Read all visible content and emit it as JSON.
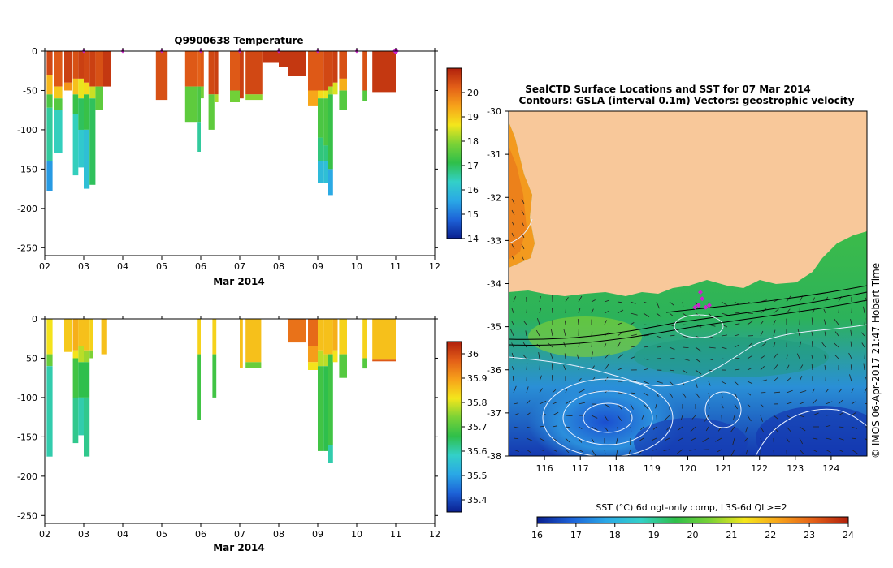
{
  "chart_data": [
    {
      "type": "heatmap",
      "id": "temperature-section",
      "title": "Q9900638  Temperature",
      "xlabel": "Mar 2014",
      "ylabel": "",
      "xlim": [
        2,
        12
      ],
      "ylim": [
        -260,
        0
      ],
      "xticks": [
        "02",
        "03",
        "04",
        "05",
        "06",
        "07",
        "08",
        "09",
        "10",
        "11",
        "12"
      ],
      "yticks": [
        0,
        -50,
        -100,
        -150,
        -200,
        -250
      ],
      "colorbar": {
        "min": 14,
        "max": 21,
        "ticks": [
          14,
          15,
          16,
          17,
          18,
          19,
          20
        ],
        "colors": [
          "#0a1f8f",
          "#1d62d8",
          "#2aa8e6",
          "#33d0c8",
          "#2fbf4a",
          "#7ad236",
          "#f4e61c",
          "#f7a21a",
          "#e35f18",
          "#b0200c"
        ]
      },
      "surface_markers": [
        3.0,
        4.0,
        5.0,
        6.0,
        7.0,
        8.0,
        9.0,
        10.0,
        11.0
      ],
      "profiles": [
        {
          "x": 2.05,
          "w": 0.15,
          "segments": [
            [
              0,
              -30,
              20.5
            ],
            [
              -30,
              -55,
              19.2
            ],
            [
              -55,
              -72,
              17.4
            ],
            [
              -72,
              -140,
              16.6
            ],
            [
              -140,
              -178,
              15.4
            ]
          ]
        },
        {
          "x": 2.25,
          "w": 0.2,
          "segments": [
            [
              0,
              -45,
              20.3
            ],
            [
              -45,
              -60,
              19.0
            ],
            [
              -60,
              -75,
              17.5
            ],
            [
              -75,
              -130,
              16.4
            ]
          ]
        },
        {
          "x": 2.5,
          "w": 0.2,
          "segments": [
            [
              0,
              -40,
              20.6
            ],
            [
              -40,
              -50,
              19.6
            ]
          ]
        },
        {
          "x": 2.72,
          "w": 0.14,
          "segments": [
            [
              0,
              -35,
              20.4
            ],
            [
              -35,
              -55,
              19.1
            ],
            [
              -55,
              -80,
              17.2
            ],
            [
              -80,
              -158,
              16.4
            ]
          ]
        },
        {
          "x": 2.86,
          "w": 0.14,
          "segments": [
            [
              0,
              -35,
              20.6
            ],
            [
              -35,
              -60,
              18.6
            ],
            [
              -60,
              -100,
              17.0
            ],
            [
              -100,
              -148,
              16.2
            ]
          ]
        },
        {
          "x": 3.0,
          "w": 0.15,
          "segments": [
            [
              0,
              -40,
              20.5
            ],
            [
              -40,
              -55,
              18.8
            ],
            [
              -55,
              -100,
              17.2
            ],
            [
              -100,
              -175,
              16.0
            ]
          ]
        },
        {
          "x": 3.15,
          "w": 0.15,
          "segments": [
            [
              0,
              -45,
              20.6
            ],
            [
              -45,
              -60,
              18.4
            ],
            [
              -60,
              -170,
              17.0
            ]
          ]
        },
        {
          "x": 3.3,
          "w": 0.2,
          "segments": [
            [
              0,
              -45,
              20.4
            ],
            [
              -45,
              -75,
              17.6
            ]
          ]
        },
        {
          "x": 3.5,
          "w": 0.2,
          "segments": [
            [
              0,
              -45,
              20.7
            ]
          ]
        },
        {
          "x": 4.85,
          "w": 0.3,
          "segments": [
            [
              0,
              -62,
              20.4
            ]
          ]
        },
        {
          "x": 5.6,
          "w": 0.32,
          "segments": [
            [
              0,
              -45,
              20.3
            ],
            [
              -45,
              -90,
              17.6
            ]
          ]
        },
        {
          "x": 5.92,
          "w": 0.08,
          "segments": [
            [
              0,
              -45,
              20.2
            ],
            [
              -45,
              -90,
              17.4
            ],
            [
              -90,
              -128,
              16.6
            ]
          ]
        },
        {
          "x": 6.0,
          "w": 0.08,
          "segments": [
            [
              0,
              -45,
              20.3
            ],
            [
              -45,
              -60,
              17.8
            ]
          ]
        },
        {
          "x": 6.2,
          "w": 0.15,
          "segments": [
            [
              0,
              -55,
              20.5
            ],
            [
              -55,
              -100,
              17.6
            ]
          ]
        },
        {
          "x": 6.35,
          "w": 0.1,
          "segments": [
            [
              0,
              -55,
              20.6
            ],
            [
              -55,
              -65,
              18.2
            ]
          ]
        },
        {
          "x": 6.75,
          "w": 0.25,
          "segments": [
            [
              0,
              -50,
              20.3
            ],
            [
              -50,
              -65,
              17.8
            ]
          ]
        },
        {
          "x": 7.0,
          "w": 0.1,
          "segments": [
            [
              0,
              -60,
              20.6
            ]
          ]
        },
        {
          "x": 7.15,
          "w": 0.45,
          "segments": [
            [
              0,
              -55,
              20.5
            ],
            [
              -55,
              -62,
              18.0
            ]
          ]
        },
        {
          "x": 7.6,
          "w": 0.4,
          "segments": [
            [
              0,
              -15,
              20.7
            ]
          ]
        },
        {
          "x": 8.0,
          "w": 0.25,
          "segments": [
            [
              0,
              -20,
              20.7
            ]
          ]
        },
        {
          "x": 8.25,
          "w": 0.45,
          "segments": [
            [
              0,
              -32,
              20.7
            ]
          ]
        },
        {
          "x": 8.75,
          "w": 0.25,
          "segments": [
            [
              0,
              -50,
              20.3
            ],
            [
              -50,
              -70,
              19.4
            ]
          ]
        },
        {
          "x": 9.0,
          "w": 0.15,
          "segments": [
            [
              0,
              -50,
              20.3
            ],
            [
              -50,
              -60,
              18.8
            ],
            [
              -60,
              -110,
              17.4
            ],
            [
              -110,
              -140,
              16.8
            ],
            [
              -140,
              -168,
              15.9
            ]
          ]
        },
        {
          "x": 9.15,
          "w": 0.12,
          "segments": [
            [
              0,
              -50,
              20.5
            ],
            [
              -50,
              -60,
              18.6
            ],
            [
              -60,
              -120,
              17.4
            ],
            [
              -120,
              -140,
              16.8
            ],
            [
              -140,
              -168,
              16.0
            ]
          ]
        },
        {
          "x": 9.27,
          "w": 0.12,
          "segments": [
            [
              0,
              -45,
              20.5
            ],
            [
              -45,
              -55,
              18.2
            ],
            [
              -55,
              -150,
              17.2
            ],
            [
              -150,
              -183,
              15.6
            ]
          ]
        },
        {
          "x": 9.39,
          "w": 0.12,
          "segments": [
            [
              0,
              -40,
              20.6
            ],
            [
              -40,
              -55,
              18.5
            ]
          ]
        },
        {
          "x": 9.55,
          "w": 0.2,
          "segments": [
            [
              0,
              -35,
              20.4
            ],
            [
              -35,
              -50,
              19.3
            ],
            [
              -50,
              -75,
              17.5
            ]
          ]
        },
        {
          "x": 10.15,
          "w": 0.12,
          "segments": [
            [
              0,
              -50,
              20.4
            ],
            [
              -50,
              -63,
              17.5
            ]
          ]
        },
        {
          "x": 10.4,
          "w": 0.6,
          "segments": [
            [
              0,
              -52,
              20.7
            ]
          ]
        }
      ]
    },
    {
      "type": "heatmap",
      "id": "salinity-section",
      "title": "",
      "xlabel": "Mar 2014",
      "xlim": [
        2,
        12
      ],
      "ylim": [
        -260,
        0
      ],
      "xticks": [
        "02",
        "03",
        "04",
        "05",
        "06",
        "07",
        "08",
        "09",
        "10",
        "11",
        "12"
      ],
      "yticks": [
        0,
        -50,
        -100,
        -150,
        -200,
        -250
      ],
      "colorbar": {
        "min": 35.35,
        "max": 36.05,
        "ticks": [
          "35.4",
          "35.5",
          "35.6",
          "35.7",
          "35.8",
          "35.9",
          "36"
        ],
        "colors": [
          "#0a1f8f",
          "#1d62d8",
          "#2aa8e6",
          "#33d0c8",
          "#2fbf4a",
          "#7ad236",
          "#f4e61c",
          "#f7a21a",
          "#e35f18",
          "#b0200c"
        ]
      },
      "profiles": [
        {
          "x": 2.05,
          "w": 0.15,
          "segments": [
            [
              0,
              -45,
              35.82
            ],
            [
              -45,
              -60,
              35.72
            ],
            [
              -60,
              -175,
              35.6
            ]
          ]
        },
        {
          "x": 2.5,
          "w": 0.2,
          "segments": [
            [
              0,
              -42,
              35.85
            ]
          ]
        },
        {
          "x": 2.72,
          "w": 0.14,
          "segments": [
            [
              0,
              -40,
              35.88
            ],
            [
              -40,
              -50,
              35.82
            ],
            [
              -50,
              -100,
              35.68
            ],
            [
              -100,
              -158,
              35.62
            ]
          ]
        },
        {
          "x": 2.86,
          "w": 0.14,
          "segments": [
            [
              0,
              -35,
              35.86
            ],
            [
              -35,
              -55,
              35.78
            ],
            [
              -55,
              -100,
              35.66
            ],
            [
              -100,
              -148,
              35.6
            ]
          ]
        },
        {
          "x": 3.0,
          "w": 0.15,
          "segments": [
            [
              0,
              -40,
              35.86
            ],
            [
              -40,
              -55,
              35.76
            ],
            [
              -55,
              -100,
              35.66
            ],
            [
              -100,
              -175,
              35.62
            ]
          ]
        },
        {
          "x": 3.15,
          "w": 0.1,
          "segments": [
            [
              0,
              -40,
              35.84
            ],
            [
              -40,
              -50,
              35.74
            ]
          ]
        },
        {
          "x": 3.45,
          "w": 0.15,
          "segments": [
            [
              0,
              -45,
              35.86
            ]
          ]
        },
        {
          "x": 5.92,
          "w": 0.08,
          "segments": [
            [
              0,
              -45,
              35.84
            ],
            [
              -45,
              -128,
              35.68
            ]
          ]
        },
        {
          "x": 6.3,
          "w": 0.1,
          "segments": [
            [
              0,
              -45,
              35.84
            ],
            [
              -45,
              -100,
              35.68
            ]
          ]
        },
        {
          "x": 7.0,
          "w": 0.08,
          "segments": [
            [
              0,
              -62,
              35.86
            ]
          ]
        },
        {
          "x": 7.15,
          "w": 0.4,
          "segments": [
            [
              0,
              -55,
              35.86
            ],
            [
              -55,
              -62,
              35.72
            ]
          ]
        },
        {
          "x": 8.25,
          "w": 0.45,
          "segments": [
            [
              0,
              -30,
              35.95
            ]
          ]
        },
        {
          "x": 8.75,
          "w": 0.25,
          "segments": [
            [
              0,
              -35,
              35.96
            ],
            [
              -35,
              -55,
              35.9
            ],
            [
              -55,
              -65,
              35.82
            ]
          ]
        },
        {
          "x": 9.0,
          "w": 0.15,
          "segments": [
            [
              0,
              -40,
              35.86
            ],
            [
              -40,
              -60,
              35.78
            ],
            [
              -60,
              -168,
              35.68
            ]
          ]
        },
        {
          "x": 9.15,
          "w": 0.12,
          "segments": [
            [
              0,
              -45,
              35.86
            ],
            [
              -45,
              -60,
              35.78
            ],
            [
              -60,
              -168,
              35.66
            ]
          ]
        },
        {
          "x": 9.27,
          "w": 0.12,
          "segments": [
            [
              0,
              -45,
              35.86
            ],
            [
              -45,
              -160,
              35.68
            ],
            [
              -160,
              -183,
              35.6
            ]
          ]
        },
        {
          "x": 9.39,
          "w": 0.12,
          "segments": [
            [
              0,
              -40,
              35.88
            ],
            [
              -40,
              -55,
              35.82
            ]
          ]
        },
        {
          "x": 9.55,
          "w": 0.2,
          "segments": [
            [
              0,
              -45,
              35.84
            ],
            [
              -45,
              -75,
              35.7
            ]
          ]
        },
        {
          "x": 10.15,
          "w": 0.12,
          "segments": [
            [
              0,
              -50,
              35.84
            ],
            [
              -50,
              -63,
              35.7
            ]
          ]
        },
        {
          "x": 10.4,
          "w": 0.6,
          "segments": [
            [
              0,
              -52,
              35.86
            ],
            [
              -52,
              -54,
              35.98
            ]
          ]
        }
      ]
    },
    {
      "type": "heatmap",
      "id": "sst-map",
      "title": "SealCTD Surface Locations and SST for 07 Mar 2014",
      "subtitle": "Contours: GSLA (interval 0.1m) Vectors: geostrophic velocity",
      "side_text": "© IMOS 06-Apr-2017 21:47 Hobart Time",
      "xlim": [
        115,
        125
      ],
      "ylim": [
        -38,
        -30
      ],
      "xticks": [
        "116",
        "117",
        "118",
        "119",
        "120",
        "121",
        "122",
        "123",
        "124"
      ],
      "yticks": [
        "-30",
        "-31",
        "-32",
        "-33",
        "-34",
        "-35",
        "-36",
        "-37",
        "-38"
      ],
      "colorbar": {
        "label": "SST (°C) 6d ngt-only comp, L3S-6d QL>=2",
        "min": 16,
        "max": 24,
        "ticks": [
          "16",
          "17",
          "18",
          "19",
          "20",
          "21",
          "22",
          "23",
          "24"
        ],
        "colors": [
          "#0a1f8f",
          "#1d62d8",
          "#2aa8e6",
          "#33d0c8",
          "#2fbf4a",
          "#7ad236",
          "#f4e61c",
          "#f7a21a",
          "#e35f18",
          "#b0200c"
        ]
      },
      "colors": {
        "land": "#f8c89a",
        "marker": "#d020d0",
        "contour": "#e8f0ff",
        "vector": "#222222"
      },
      "seal_locations": [
        [
          120.35,
          -34.2
        ],
        [
          120.4,
          -34.35
        ],
        [
          120.3,
          -34.5
        ],
        [
          120.5,
          -34.55
        ],
        [
          120.6,
          -34.5
        ],
        [
          120.2,
          -34.55
        ]
      ]
    }
  ]
}
